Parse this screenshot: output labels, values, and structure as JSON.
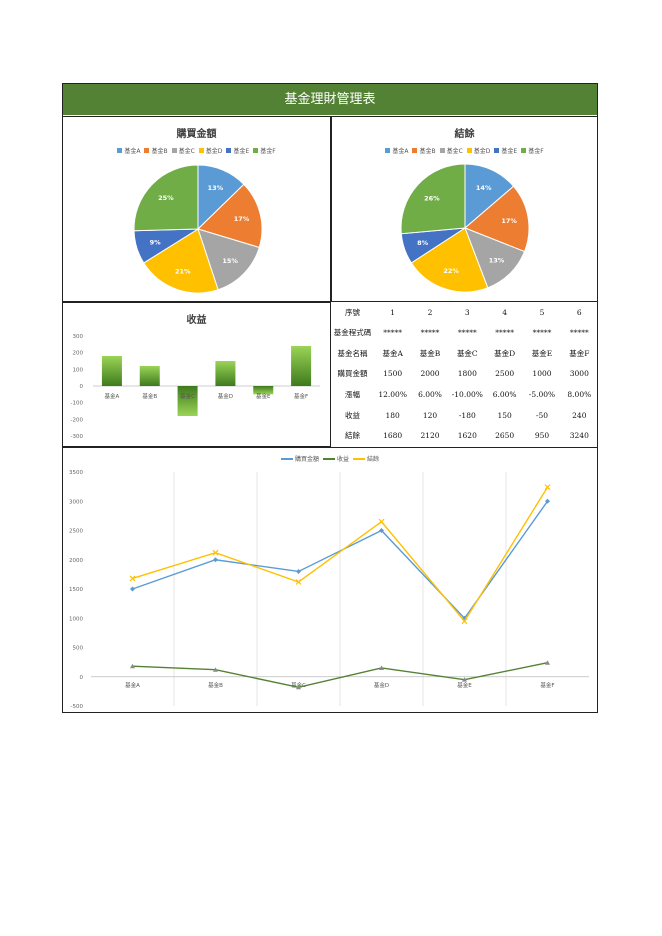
{
  "page_title": "基金理財管理表",
  "colors": {
    "header_bg": "#548235",
    "pie": [
      "#5B9BD5",
      "#ED7D31",
      "#A5A5A5",
      "#FFC000",
      "#4472C4",
      "#70AD47"
    ],
    "bar_top": "#9BD456",
    "bar_bottom": "#3E7A1E",
    "line_purchase": "#5B9BD5",
    "line_profit": "#548235",
    "line_balance": "#FFC000"
  },
  "chart_data": [
    {
      "type": "pie",
      "title": "購買金額",
      "categories": [
        "基金A",
        "基金B",
        "基金C",
        "基金D",
        "基金E",
        "基金F"
      ],
      "values": [
        1500,
        2000,
        1800,
        2500,
        1000,
        3000
      ],
      "labels": [
        "13%",
        "17%",
        "15%",
        "21%",
        "9%",
        "25%"
      ],
      "legend": "top"
    },
    {
      "type": "pie",
      "title": "結餘",
      "categories": [
        "基金A",
        "基金B",
        "基金C",
        "基金D",
        "基金E",
        "基金F"
      ],
      "values": [
        1680,
        2120,
        1620,
        2650,
        950,
        3240
      ],
      "labels": [
        "14%",
        "17%",
        "13%",
        "22%",
        "8%",
        "26%"
      ],
      "legend": "top"
    },
    {
      "type": "bar",
      "title": "收益",
      "categories": [
        "基金A",
        "基金B",
        "基金C",
        "基金D",
        "基金E",
        "基金F"
      ],
      "values": [
        180,
        120,
        -180,
        150,
        -50,
        240
      ],
      "ylim": [
        -300,
        300
      ],
      "yticks": [
        "300",
        "200",
        "100",
        "0",
        "-100",
        "-200",
        "-300"
      ]
    },
    {
      "type": "line",
      "categories": [
        "基金A",
        "基金B",
        "基金C",
        "基金D",
        "基金E",
        "基金F"
      ],
      "series": [
        {
          "name": "購買金額",
          "values": [
            1500,
            2000,
            1800,
            2500,
            1000,
            3000
          ]
        },
        {
          "name": "收益",
          "values": [
            180,
            120,
            -180,
            150,
            -50,
            240
          ]
        },
        {
          "name": "結餘",
          "values": [
            1680,
            2120,
            1620,
            2650,
            950,
            3240
          ]
        }
      ],
      "ylim": [
        -500,
        3500
      ],
      "yticks": [
        "3500",
        "3000",
        "2500",
        "2000",
        "1500",
        "1000",
        "500",
        "0",
        "-500"
      ],
      "legend": "top",
      "grid": "vertical"
    }
  ],
  "table": {
    "rows": [
      {
        "label": "序號",
        "cells": [
          "1",
          "2",
          "3",
          "4",
          "5",
          "6"
        ]
      },
      {
        "label": "基金程式碼",
        "cells": [
          "*****",
          "*****",
          "*****",
          "*****",
          "*****",
          "*****"
        ]
      },
      {
        "label": "基金名稱",
        "cells": [
          "基金A",
          "基金B",
          "基金C",
          "基金D",
          "基金E",
          "基金F"
        ]
      },
      {
        "label": "購買金額",
        "cells": [
          "1500",
          "2000",
          "1800",
          "2500",
          "1000",
          "3000"
        ]
      },
      {
        "label": "漲幅",
        "cells": [
          "12.00%",
          "6.00%",
          "-10.00%",
          "6.00%",
          "-5.00%",
          "8.00%"
        ]
      },
      {
        "label": "收益",
        "cells": [
          "180",
          "120",
          "-180",
          "150",
          "-50",
          "240"
        ]
      },
      {
        "label": "結餘",
        "cells": [
          "1680",
          "2120",
          "1620",
          "2650",
          "950",
          "3240"
        ]
      }
    ]
  }
}
